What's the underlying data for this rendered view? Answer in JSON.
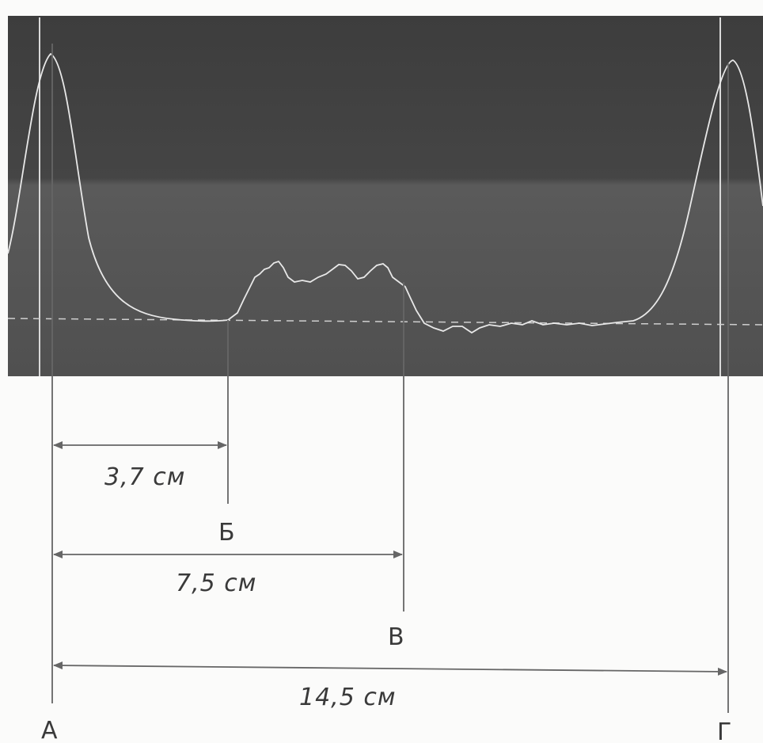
{
  "dimensions": [
    {
      "label": "3,7 см"
    },
    {
      "label": "7,5 см"
    },
    {
      "label": "14,5 см"
    }
  ],
  "points": [
    {
      "label": "А"
    },
    {
      "label": "Б"
    },
    {
      "label": "В"
    },
    {
      "label": "Г"
    }
  ],
  "colors": {
    "scan_background": "#4e4e4e",
    "trace": "#e8e8e8",
    "paper": "#fbfbfa",
    "pencil": "#555555"
  }
}
